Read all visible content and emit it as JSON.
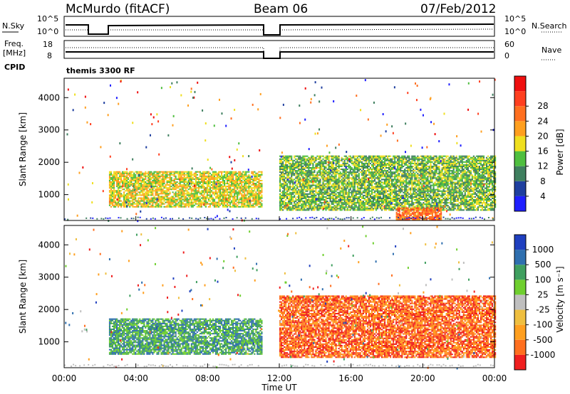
{
  "header": {
    "station": "McMurdo (fitACF)",
    "beam": "Beam 06",
    "date": "07/Feb/2012",
    "cpid_label": "CPID",
    "cpid_value": "themis 3300 RF"
  },
  "noise_panel": {
    "left_label": "N.Sky",
    "right_label": "N.Search",
    "left_ticks": [
      "10^5",
      "10^0"
    ],
    "right_ticks": [
      "10^5",
      "10^0"
    ]
  },
  "freq_panel": {
    "left_label_1": "Freq.",
    "left_label_2": "[MHz]",
    "right_label": "Nave",
    "left_ticks": [
      "18",
      "8"
    ],
    "right_ticks": [
      "60",
      "0"
    ]
  },
  "x_axis": {
    "label": "Time UT",
    "ticks": [
      "00:00",
      "04:00",
      "08:00",
      "12:00",
      "16:00",
      "20:00",
      "00:00"
    ]
  },
  "colors": {
    "power": [
      "#1f1fff",
      "#1f3f9f",
      "#3f7f5f",
      "#4fbf3f",
      "#efdf1f",
      "#ff9f1f",
      "#ff6f1f",
      "#ff3f1f",
      "#ef0f0f"
    ],
    "velocity": [
      "#ef1f1f",
      "#ff6f1f",
      "#ff9f1f",
      "#efbf3f",
      "#bfbfbf",
      "#6fcf2f",
      "#3f9f5f",
      "#2f6faf",
      "#1f3fbf"
    ]
  },
  "chart_data": [
    {
      "type": "heatmap",
      "title": "Power",
      "ylabel": "Slant Range [km]",
      "xlabel": "",
      "y_ticks": [
        "1000",
        "2000",
        "3000",
        "4000"
      ],
      "ylim": [
        200,
        4600
      ],
      "xlim_hours": [
        0,
        24
      ],
      "colorbar_label": "Power [dB]",
      "colorbar_ticks": [
        "4",
        "8",
        "12",
        "16",
        "20",
        "24",
        "28"
      ],
      "data_gaps_hours": [
        [
          11.0,
          11.9
        ]
      ],
      "regions": [
        {
          "t0": 2.5,
          "t1": 11.0,
          "r0": 600,
          "r1": 1700,
          "level": 4
        },
        {
          "t0": 12.0,
          "t1": 24.0,
          "r0": 500,
          "r1": 2200,
          "level": 3
        },
        {
          "t0": 18.5,
          "t1": 21.0,
          "r0": 200,
          "r1": 600,
          "level": 6
        }
      ]
    },
    {
      "type": "heatmap",
      "title": "Velocity",
      "ylabel": "Slant Range [km]",
      "xlabel": "Time UT",
      "y_ticks": [
        "1000",
        "2000",
        "3000",
        "4000"
      ],
      "ylim": [
        200,
        4600
      ],
      "xlim_hours": [
        0,
        24
      ],
      "colorbar_label": "Velocity [m s⁻¹]",
      "colorbar_ticks": [
        "-1000",
        "-500",
        "-100",
        "-25",
        "25",
        "100",
        "500",
        "1000"
      ],
      "data_gaps_hours": [
        [
          11.0,
          11.9
        ]
      ],
      "regions": [
        {
          "t0": 2.5,
          "t1": 11.0,
          "r0": 600,
          "r1": 1700,
          "level": 6
        },
        {
          "t0": 12.0,
          "t1": 24.0,
          "r0": 500,
          "r1": 2400,
          "level": 1
        }
      ]
    }
  ]
}
